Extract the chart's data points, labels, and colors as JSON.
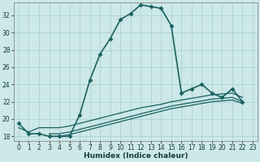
{
  "xlabel": "Humidex (Indice chaleur)",
  "ylabel": "",
  "xlim": [
    -0.5,
    23.5
  ],
  "ylim": [
    17.5,
    33.5
  ],
  "yticks": [
    18,
    20,
    22,
    24,
    26,
    28,
    30,
    32
  ],
  "xticks": [
    0,
    1,
    2,
    3,
    4,
    5,
    6,
    7,
    8,
    9,
    10,
    11,
    12,
    13,
    14,
    15,
    16,
    17,
    18,
    19,
    20,
    21,
    22,
    23
  ],
  "bg_color": "#cce8e8",
  "grid_color": "#aacccc",
  "line_color": "#1a6060",
  "lines": [
    {
      "x": [
        0,
        1,
        2,
        3,
        4,
        5,
        6,
        7,
        8,
        9,
        10,
        11,
        12,
        13,
        14,
        15,
        16,
        17,
        18,
        19,
        20,
        21,
        22
      ],
      "y": [
        19.5,
        18.3,
        18.3,
        18.0,
        18.0,
        18.0,
        20.5,
        24.5,
        27.5,
        29.3,
        31.5,
        32.2,
        33.2,
        33.0,
        32.8,
        30.8,
        23.0,
        23.5,
        24.0,
        23.0,
        22.5,
        23.5,
        22.0
      ],
      "marker": "D",
      "markersize": 2.5,
      "linewidth": 1.2
    },
    {
      "x": [
        0,
        1,
        2,
        3,
        4,
        5,
        6,
        7,
        8,
        9,
        10,
        11,
        12,
        13,
        14,
        15,
        16,
        17,
        18,
        19,
        20,
        21,
        22,
        23
      ],
      "y": [
        19.0,
        18.5,
        19.0,
        19.0,
        19.0,
        19.2,
        19.5,
        19.8,
        20.1,
        20.4,
        20.7,
        21.0,
        21.3,
        21.5,
        21.7,
        22.0,
        22.2,
        22.4,
        22.6,
        22.8,
        22.9,
        23.0,
        22.5,
        null
      ],
      "marker": null,
      "markersize": 0,
      "linewidth": 0.9
    },
    {
      "x": [
        0,
        1,
        2,
        3,
        4,
        5,
        6,
        7,
        8,
        9,
        10,
        11,
        12,
        13,
        14,
        15,
        16,
        17,
        18,
        19,
        20,
        21,
        22,
        23
      ],
      "y": [
        null,
        null,
        null,
        18.3,
        18.3,
        18.5,
        18.8,
        19.1,
        19.4,
        19.7,
        20.0,
        20.3,
        20.6,
        20.9,
        21.2,
        21.5,
        21.7,
        21.9,
        22.1,
        22.3,
        22.4,
        22.5,
        22.0,
        null
      ],
      "marker": null,
      "markersize": 0,
      "linewidth": 0.9
    },
    {
      "x": [
        0,
        1,
        2,
        3,
        4,
        5,
        6,
        7,
        8,
        9,
        10,
        11,
        12,
        13,
        14,
        15,
        16,
        17,
        18,
        19,
        20,
        21,
        22,
        23
      ],
      "y": [
        null,
        null,
        null,
        18.0,
        18.0,
        18.2,
        18.5,
        18.8,
        19.1,
        19.4,
        19.7,
        20.0,
        20.3,
        20.6,
        20.9,
        21.2,
        21.4,
        21.6,
        21.8,
        22.0,
        22.1,
        22.2,
        21.8,
        null
      ],
      "marker": null,
      "markersize": 0,
      "linewidth": 0.9
    }
  ]
}
